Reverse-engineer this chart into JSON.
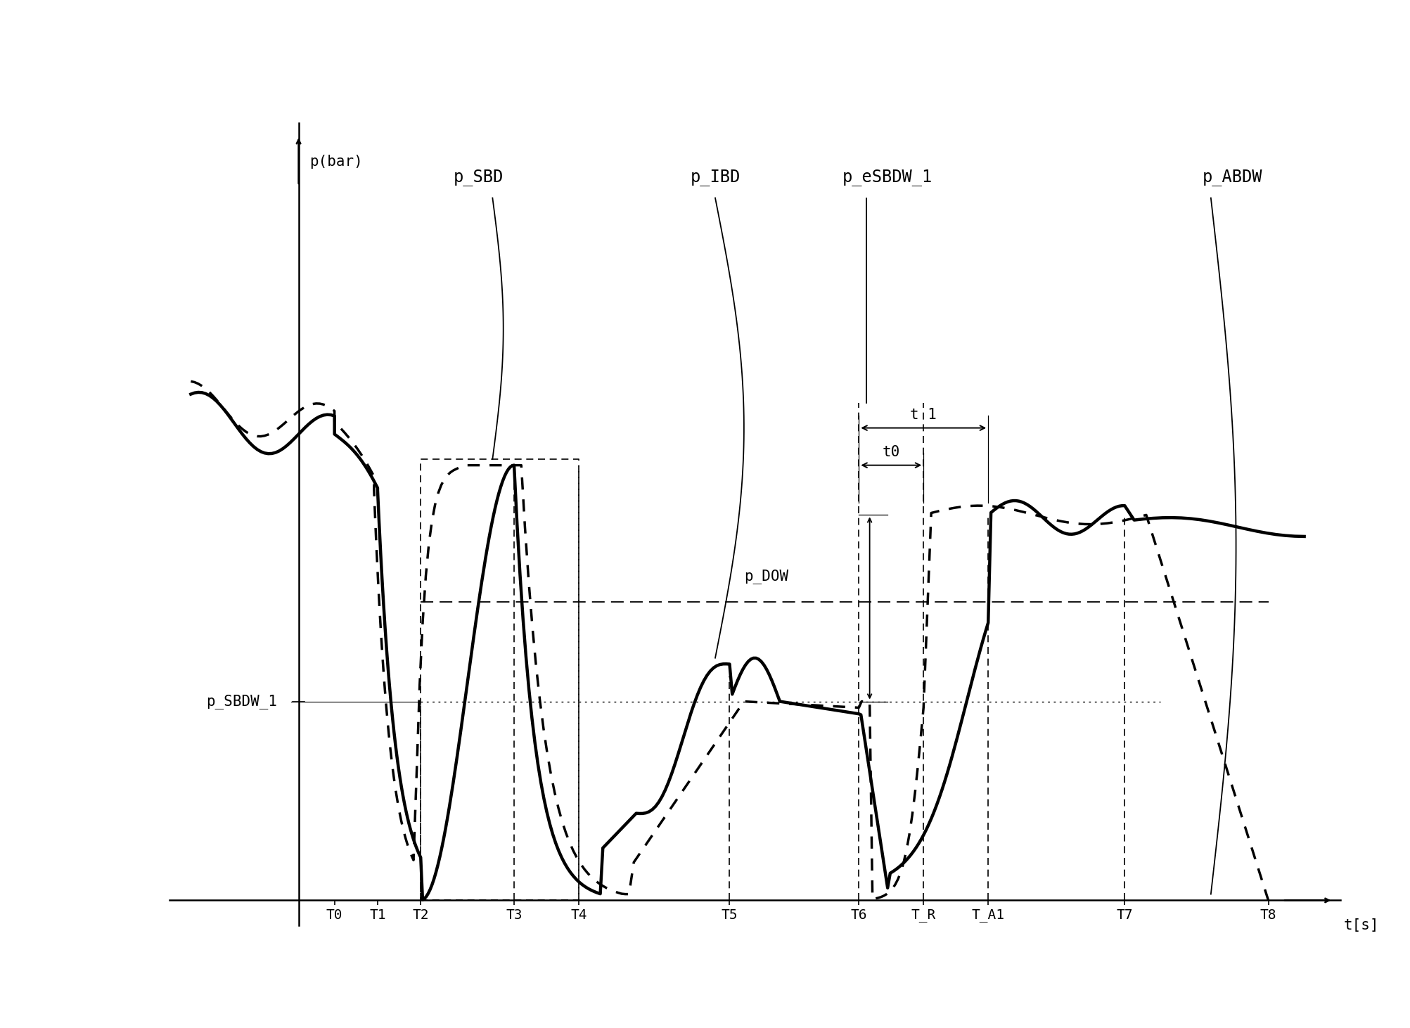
{
  "background_color": "#ffffff",
  "ylabel": "p(bar)",
  "xlabel": "t[s]",
  "t_labels": [
    "T0",
    "T1",
    "T2",
    "T3",
    "T4",
    "T5",
    "T6",
    "T_R",
    "T_A1",
    "T7",
    "T8"
  ],
  "p_DOW_label": "p_DOW",
  "p_SBDW_label": "p_SBDW_1",
  "p_SBD_label": "p_SBD",
  "p_IBD_label": "p_IBD",
  "p_eSBDW_label": "p_eSBDW_1",
  "p_ABDW_label": "p_ABDW",
  "t0_label": "t0",
  "t1_label": "t 1",
  "p_DOW_level": 0.48,
  "p_SBDW_level": 0.32,
  "p_peak": 0.7,
  "p_high": 0.62,
  "T0": 0.5,
  "T1": 1.1,
  "T2": 1.7,
  "T3": 3.0,
  "T4": 3.9,
  "T5": 6.0,
  "T6": 7.8,
  "T_R": 8.7,
  "T_A1": 9.6,
  "T7": 11.5,
  "T8": 13.5,
  "x_max": 14.5,
  "p_max": 1.05
}
